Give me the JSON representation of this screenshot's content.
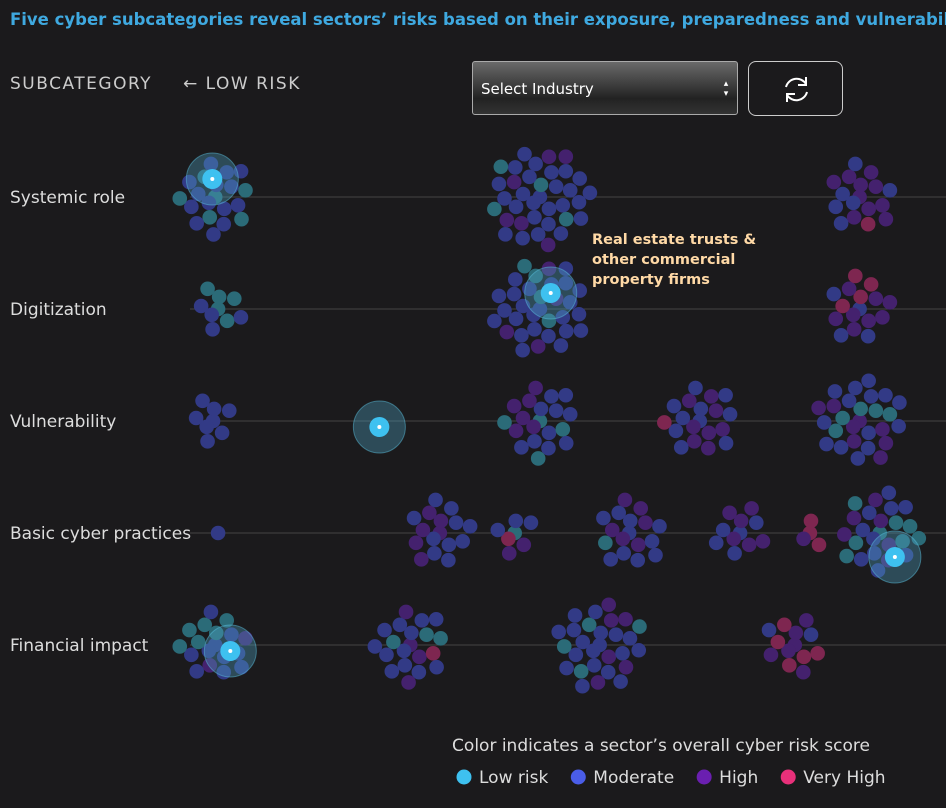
{
  "header": {
    "title": "Five cyber subcategories reveal sectors’ risks based on their exposure, preparedness and vulnerabilities",
    "subcategory_label": "SUBCATEGORY",
    "direction_label": "← LOW RISK",
    "select_label": "Select Industry"
  },
  "chart_data": {
    "type": "beeswarm",
    "xlim": [
      0,
      100
    ],
    "risk_levels": [
      {
        "name": "Low risk",
        "color": "#3ec1f0",
        "dot_color": "#2b6b78"
      },
      {
        "name": "Moderate",
        "color": "#4a5de8",
        "dot_color": "#323a86"
      },
      {
        "name": "High",
        "color": "#6a1fb0",
        "dot_color": "#44216e"
      },
      {
        "name": "Very High",
        "color": "#e8307a",
        "dot_color": "#7e2650"
      }
    ],
    "rows": [
      {
        "name": "Systemic role",
        "clusters": [
          {
            "x": 3.5,
            "counts": [
              6,
              14,
              0,
              0
            ]
          },
          {
            "x": 48.6,
            "counts": [
              4,
              26,
              6,
              0
            ]
          },
          {
            "x": 93,
            "counts": [
              0,
              6,
              10,
              1
            ]
          }
        ]
      },
      {
        "name": "Digitization",
        "clusters": [
          {
            "x": 3.9,
            "counts": [
              5,
              4,
              0,
              0
            ]
          },
          {
            "x": 48.6,
            "counts": [
              4,
              24,
              4,
              0
            ]
          },
          {
            "x": 93,
            "counts": [
              0,
              4,
              8,
              4
            ]
          }
        ]
      },
      {
        "name": "Vulnerability",
        "clusters": [
          {
            "x": 3.2,
            "counts": [
              0,
              8,
              0,
              0
            ]
          },
          {
            "x": 48.6,
            "counts": [
              4,
              10,
              6,
              0
            ]
          },
          {
            "x": 70.8,
            "counts": [
              0,
              10,
              8,
              1
            ]
          },
          {
            "x": 93,
            "counts": [
              5,
              14,
              8,
              0
            ]
          }
        ]
      },
      {
        "name": "Basic cyber practices",
        "clusters": [
          {
            "x": 3.9,
            "counts": [
              0,
              1,
              0,
              0
            ]
          },
          {
            "x": 34.7,
            "counts": [
              0,
              10,
              6,
              0
            ]
          },
          {
            "x": 45.1,
            "counts": [
              1,
              3,
              2,
              1
            ]
          },
          {
            "x": 61,
            "counts": [
              1,
              10,
              6,
              0
            ]
          },
          {
            "x": 76.4,
            "counts": [
              0,
              5,
              6,
              0
            ]
          },
          {
            "x": 86.1,
            "counts": [
              0,
              0,
              1,
              3
            ]
          },
          {
            "x": 95.8,
            "counts": [
              8,
              10,
              6,
              0
            ]
          }
        ]
      },
      {
        "name": "Financial impact",
        "clusters": [
          {
            "x": 3.5,
            "counts": [
              6,
              10,
              2,
              0
            ]
          },
          {
            "x": 30.6,
            "counts": [
              3,
              12,
              4,
              1
            ]
          },
          {
            "x": 56.9,
            "counts": [
              4,
              18,
              6,
              0
            ]
          },
          {
            "x": 84,
            "counts": [
              0,
              2,
              6,
              5
            ]
          }
        ]
      }
    ],
    "highlight": {
      "label": "Real estate trusts & other commercial property firms",
      "x": [
        3.1,
        50.1,
        26.3,
        97.9,
        5.6
      ]
    },
    "legend_title": "Color indicates a sector’s overall cyber risk score"
  }
}
